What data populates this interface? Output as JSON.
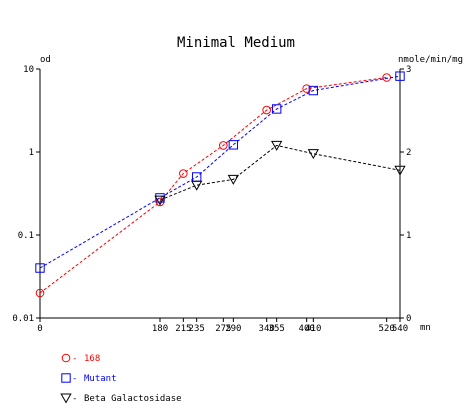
{
  "chart_data": {
    "type": "line",
    "title": "Minimal Medium",
    "left_axis": {
      "label": "od",
      "scale": "log",
      "range": [
        0.01,
        10
      ],
      "ticks": [
        {
          "value": 0.01,
          "label": "0.01"
        },
        {
          "value": 0.1,
          "label": "0.1"
        },
        {
          "value": 1,
          "label": "1"
        },
        {
          "value": 10,
          "label": "10"
        }
      ]
    },
    "right_axis": {
      "label": "nmole/min/mg",
      "scale": "linear",
      "range": [
        0,
        3
      ],
      "ticks": [
        {
          "value": 0,
          "label": "0"
        },
        {
          "value": 1,
          "label": "1"
        },
        {
          "value": 2,
          "label": "2"
        },
        {
          "value": 3,
          "label": "3"
        }
      ]
    },
    "x_axis": {
      "label": "mn",
      "range": [
        0,
        540
      ],
      "ticks": [
        {
          "value": 0,
          "label": "0"
        },
        {
          "value": 180,
          "label": "180"
        },
        {
          "value": 215,
          "label": "215"
        },
        {
          "value": 235,
          "label": "235"
        },
        {
          "value": 275,
          "label": "275"
        },
        {
          "value": 290,
          "label": "290"
        },
        {
          "value": 340,
          "label": "340"
        },
        {
          "value": 355,
          "label": "355"
        },
        {
          "value": 400,
          "label": "400"
        },
        {
          "value": 410,
          "label": "410"
        },
        {
          "value": 520,
          "label": "520"
        },
        {
          "value": 540,
          "label": "540"
        }
      ]
    },
    "grid": false,
    "legend_position": "bottom-left",
    "series": [
      {
        "name": "168",
        "axis": "left",
        "color": "#ff0000",
        "marker": "circle",
        "points": [
          [
            0,
            0.02
          ],
          [
            180,
            0.25
          ],
          [
            215,
            0.55
          ],
          [
            275,
            1.2
          ],
          [
            340,
            3.2
          ],
          [
            400,
            5.8
          ],
          [
            520,
            7.9
          ]
        ]
      },
      {
        "name": "Mutant",
        "axis": "left",
        "color": "#0000ff",
        "marker": "square",
        "points": [
          [
            0,
            0.04
          ],
          [
            180,
            0.28
          ],
          [
            235,
            0.5
          ],
          [
            290,
            1.22
          ],
          [
            355,
            3.3
          ],
          [
            410,
            5.5
          ],
          [
            540,
            8.2
          ]
        ]
      },
      {
        "name": "Beta Galactosidase",
        "axis": "right",
        "color": "#000000",
        "marker": "triangle-down",
        "points": [
          [
            180,
            1.42
          ],
          [
            235,
            1.6
          ],
          [
            290,
            1.67
          ],
          [
            355,
            2.08
          ],
          [
            410,
            1.98
          ],
          [
            540,
            1.78
          ]
        ]
      }
    ]
  }
}
